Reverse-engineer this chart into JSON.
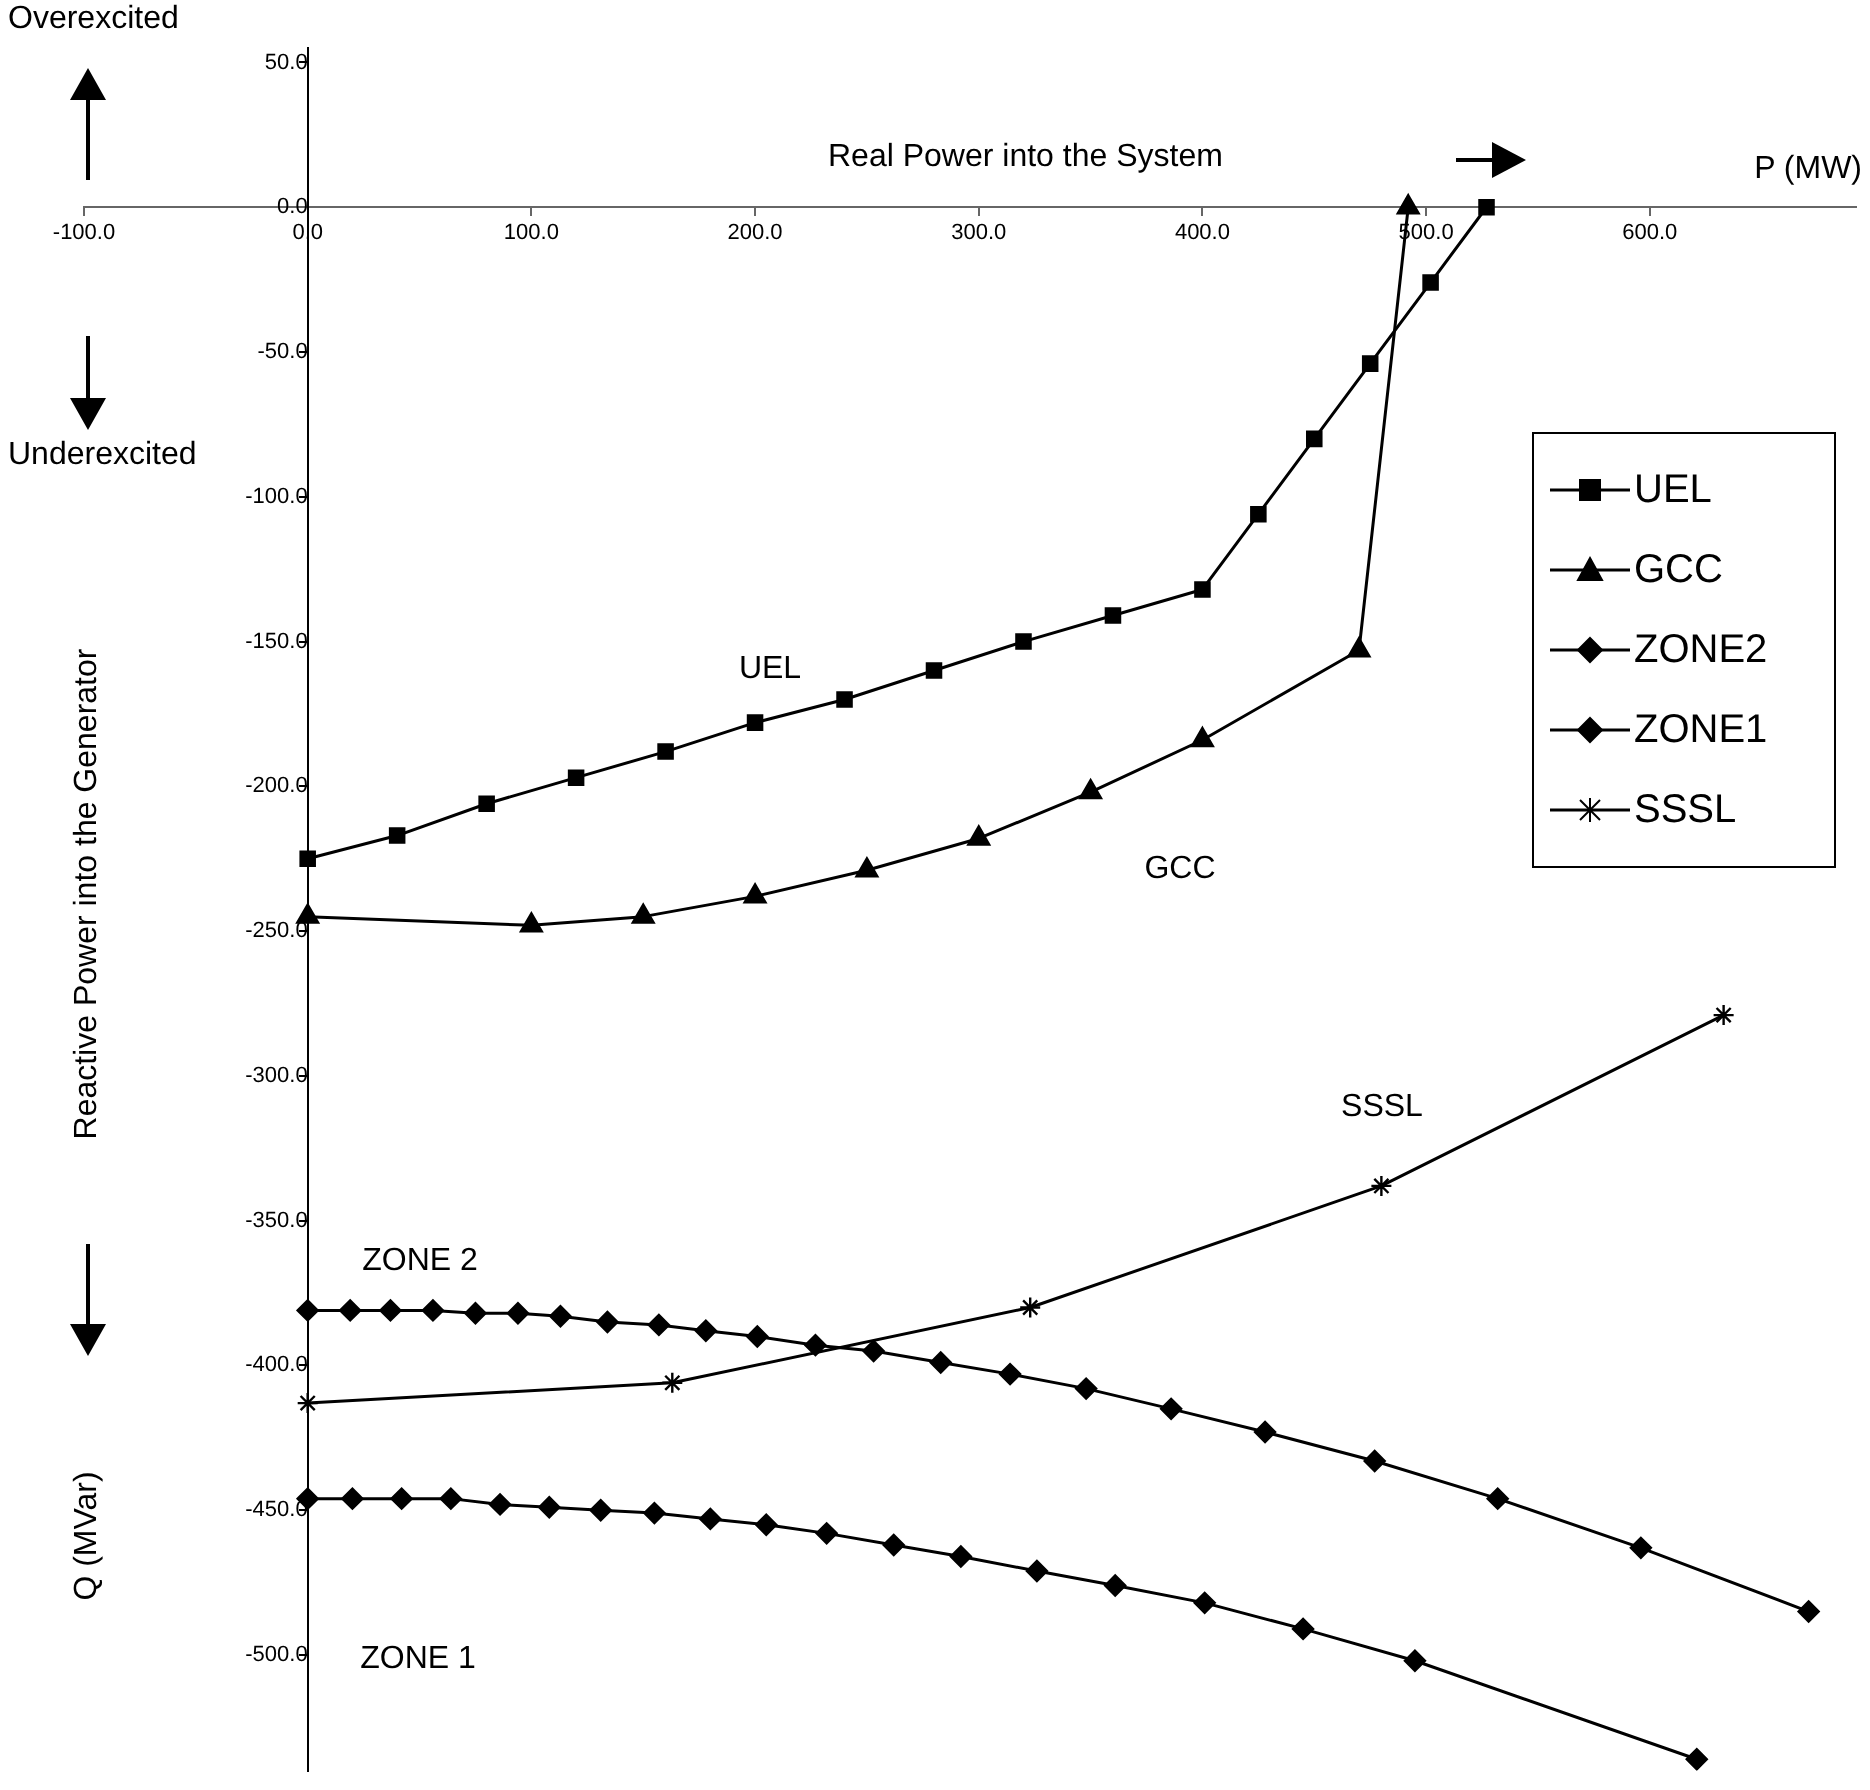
{
  "chart_data": {
    "type": "line",
    "xlabel": "P (MW)",
    "ylabel": "Reactive Power into the Generator",
    "xlim": [
      -100,
      692
    ],
    "ylim": [
      -540,
      55
    ],
    "xticks": [
      {
        "value": -100,
        "label": "-100.0"
      },
      {
        "value": 0,
        "label": "0.0"
      },
      {
        "value": 100,
        "label": "100.0"
      },
      {
        "value": 200,
        "label": "200.0"
      },
      {
        "value": 300,
        "label": "300.0"
      },
      {
        "value": 400,
        "label": "400.0"
      },
      {
        "value": 500,
        "label": "500.0"
      },
      {
        "value": 600,
        "label": "600.0"
      }
    ],
    "yticks": [
      {
        "value": 50,
        "label": "50.0"
      },
      {
        "value": 0,
        "label": "0.0"
      },
      {
        "value": -50,
        "label": "-50.0"
      },
      {
        "value": -100,
        "label": "-100.0"
      },
      {
        "value": -150,
        "label": "-150.0"
      },
      {
        "value": -200,
        "label": "-200.0"
      },
      {
        "value": -250,
        "label": "-250.0"
      },
      {
        "value": -300,
        "label": "-300.0"
      },
      {
        "value": -350,
        "label": "-350.0"
      },
      {
        "value": -400,
        "label": "-400.0"
      },
      {
        "value": -450,
        "label": "-450.0"
      },
      {
        "value": -500,
        "label": "-500.0"
      }
    ],
    "grid": false,
    "legend": "right",
    "line_style": "solid",
    "series": [
      {
        "name": "UEL",
        "color": "#000000",
        "marker": "square",
        "x": [
          0,
          40,
          80,
          120,
          160,
          200,
          240,
          280,
          320,
          360,
          400,
          425,
          450,
          475,
          502,
          527
        ],
        "values": [
          -225,
          -217,
          -206,
          -197,
          -188,
          -178,
          -170,
          -160,
          -150,
          -141,
          -132,
          -106,
          -80,
          -54,
          -26,
          0
        ]
      },
      {
        "name": "GCC",
        "color": "#000000",
        "marker": "triangle",
        "x": [
          0,
          100,
          150,
          200,
          250,
          300,
          350,
          400,
          470,
          492
        ],
        "values": [
          -245,
          -248,
          -245,
          -238,
          -229,
          -218,
          -202,
          -184,
          -153,
          0
        ]
      },
      {
        "name": "ZONE2",
        "color": "#000000",
        "marker": "diamond",
        "x": [
          0,
          19,
          37,
          56,
          75,
          94,
          113,
          134,
          157,
          178,
          201,
          227,
          253,
          283,
          314,
          348,
          386,
          428,
          477,
          532,
          596,
          671
        ],
        "values": [
          -381,
          -381,
          -381,
          -381,
          -382,
          -382,
          -383,
          -385,
          -386,
          -388,
          -390,
          -393,
          -395,
          -399,
          -403,
          -408,
          -415,
          -423,
          -433,
          -446,
          -463,
          -485
        ]
      },
      {
        "name": "ZONE1",
        "color": "#000000",
        "marker": "diamond",
        "x": [
          0,
          20,
          42,
          64,
          86,
          108,
          131,
          155,
          180,
          205,
          232,
          262,
          292,
          326,
          361,
          401,
          445,
          495,
          621
        ],
        "values": [
          -446,
          -446,
          -446,
          -446,
          -448,
          -449,
          -450,
          -451,
          -453,
          -455,
          -458,
          -462,
          -466,
          -471,
          -476,
          -482,
          -491,
          -502,
          -536
        ]
      },
      {
        "name": "SSSL",
        "color": "#000000",
        "marker": "cross",
        "x": [
          0,
          163,
          323,
          480,
          633
        ],
        "values": [
          -413,
          -406,
          -380,
          -338,
          -279
        ]
      }
    ],
    "annotations": [
      "Overexcited",
      "Underexcited",
      "Real Power into the System",
      "Q (MVar)",
      "UEL",
      "GCC",
      "SSSL",
      "ZONE 2",
      "ZONE 1"
    ]
  }
}
